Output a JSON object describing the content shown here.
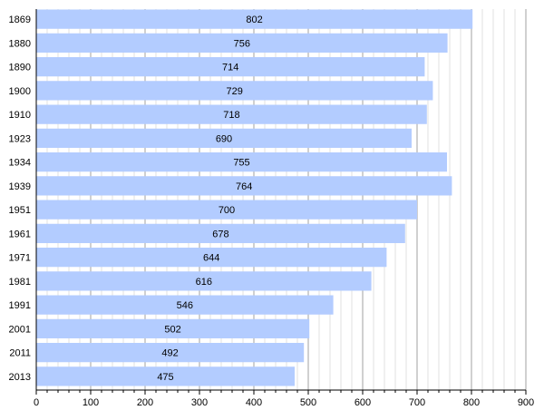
{
  "chart_data": {
    "type": "bar",
    "orientation": "horizontal",
    "title": "",
    "xlabel": "",
    "ylabel": "",
    "categories": [
      "1869",
      "1880",
      "1890",
      "1900",
      "1910",
      "1923",
      "1934",
      "1939",
      "1951",
      "1961",
      "1971",
      "1981",
      "1991",
      "2001",
      "2011",
      "2013"
    ],
    "values": [
      802,
      756,
      714,
      729,
      718,
      690,
      755,
      764,
      700,
      678,
      644,
      616,
      546,
      502,
      492,
      475
    ],
    "value_labels": [
      "802",
      "756",
      "714",
      "729",
      "718",
      "690",
      "755",
      "764",
      "700",
      "678",
      "644",
      "616",
      "546",
      "502",
      "492",
      "475"
    ],
    "xlim": [
      0,
      900
    ],
    "x_ticks": [
      "0",
      "100",
      "200",
      "300",
      "400",
      "500",
      "600",
      "700",
      "800",
      "900"
    ],
    "grid": true,
    "legend": "none",
    "colors": {
      "bar": "#b3ccff",
      "major_grid": "#a0a0a0",
      "minor_grid": "#e0e0e0",
      "axis": "#000000"
    }
  }
}
